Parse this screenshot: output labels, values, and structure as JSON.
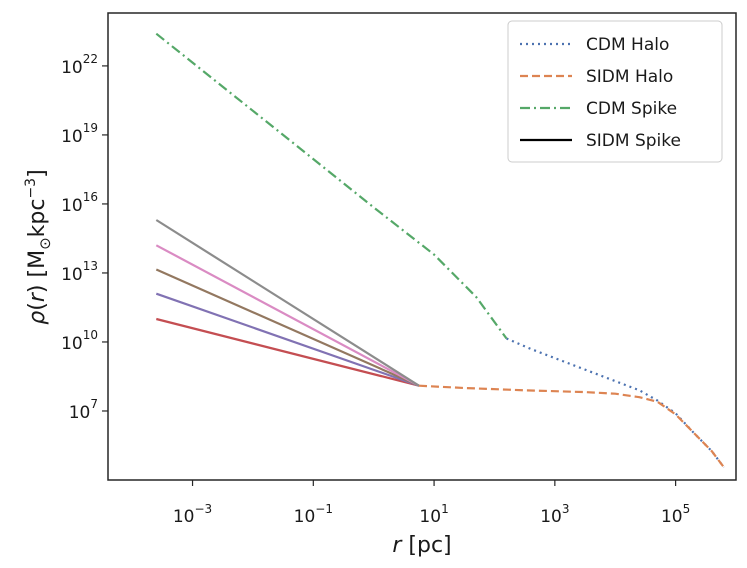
{
  "chart_data": {
    "type": "line",
    "xscale": "log",
    "yscale": "log",
    "xlim_log10": [
      -4.4,
      6.0
    ],
    "ylim_log10": [
      4.0,
      24.3
    ],
    "x_ticks": [
      {
        "base": "10",
        "exp": "−3",
        "log10": -3
      },
      {
        "base": "10",
        "exp": "−1",
        "log10": -1
      },
      {
        "base": "10",
        "exp": "1",
        "log10": 1
      },
      {
        "base": "10",
        "exp": "3",
        "log10": 3
      },
      {
        "base": "10",
        "exp": "5",
        "log10": 5
      }
    ],
    "y_ticks": [
      {
        "base": "10",
        "exp": "7",
        "log10": 7
      },
      {
        "base": "10",
        "exp": "10",
        "log10": 10
      },
      {
        "base": "10",
        "exp": "13",
        "log10": 13
      },
      {
        "base": "10",
        "exp": "16",
        "log10": 16
      },
      {
        "base": "10",
        "exp": "19",
        "log10": 19
      },
      {
        "base": "10",
        "exp": "22",
        "log10": 22
      }
    ],
    "xlabel": {
      "italic": "r",
      "text": " [pc]"
    },
    "ylabel": {
      "rho": "ρ",
      "open": "(",
      "r": "r",
      "close": ")",
      "units": " [M",
      "sun": "⊙",
      "kpc": "kpc",
      "exp": "−3",
      "end": "]"
    },
    "legend_position": "upper right",
    "series": [
      {
        "name": "CDM Halo",
        "color": "#4c72b0",
        "style": "dotted",
        "in_legend": true,
        "points_log10": [
          [
            2.2,
            10.15
          ],
          [
            2.6,
            9.7
          ],
          [
            3.0,
            9.3
          ],
          [
            3.5,
            8.8
          ],
          [
            4.0,
            8.3
          ],
          [
            4.4,
            7.9
          ],
          [
            4.7,
            7.45
          ],
          [
            5.0,
            6.9
          ],
          [
            5.3,
            6.05
          ],
          [
            5.6,
            5.25
          ],
          [
            5.8,
            4.55
          ]
        ]
      },
      {
        "name": "SIDM Halo",
        "color": "#dd8452",
        "style": "dashed",
        "in_legend": true,
        "points_log10": [
          [
            0.75,
            8.1
          ],
          [
            1.5,
            8.0
          ],
          [
            2.5,
            7.9
          ],
          [
            3.5,
            7.82
          ],
          [
            4.0,
            7.75
          ],
          [
            4.4,
            7.6
          ],
          [
            4.7,
            7.4
          ],
          [
            5.0,
            6.85
          ],
          [
            5.3,
            6.05
          ],
          [
            5.6,
            5.25
          ],
          [
            5.8,
            4.55
          ]
        ]
      },
      {
        "name": "CDM Spike",
        "color": "#55a868",
        "style": "dashdot",
        "in_legend": true,
        "points_log10": [
          [
            -3.6,
            23.4
          ],
          [
            -2.0,
            20.05
          ],
          [
            0.0,
            15.85
          ],
          [
            1.0,
            13.8
          ],
          [
            1.7,
            11.95
          ],
          [
            2.2,
            10.15
          ]
        ]
      },
      {
        "name": "SIDM Spike",
        "color": "#000000",
        "style": "solid",
        "in_legend": true,
        "points_log10": []
      },
      {
        "name": "",
        "color": "#c44e52",
        "style": "solid",
        "in_legend": false,
        "points_log10": [
          [
            -3.6,
            11.0
          ],
          [
            0.75,
            8.1
          ]
        ]
      },
      {
        "name": "",
        "color": "#8172b3",
        "style": "solid",
        "in_legend": false,
        "points_log10": [
          [
            -3.6,
            12.1
          ],
          [
            0.75,
            8.1
          ]
        ]
      },
      {
        "name": "",
        "color": "#937860",
        "style": "solid",
        "in_legend": false,
        "points_log10": [
          [
            -3.6,
            13.15
          ],
          [
            0.75,
            8.1
          ]
        ]
      },
      {
        "name": "",
        "color": "#da8bc3",
        "style": "solid",
        "in_legend": false,
        "points_log10": [
          [
            -3.6,
            14.2
          ],
          [
            0.75,
            8.1
          ]
        ]
      },
      {
        "name": "",
        "color": "#8c8c8c",
        "style": "solid",
        "in_legend": false,
        "points_log10": [
          [
            -3.6,
            15.3
          ],
          [
            0.75,
            8.1
          ]
        ]
      }
    ]
  }
}
